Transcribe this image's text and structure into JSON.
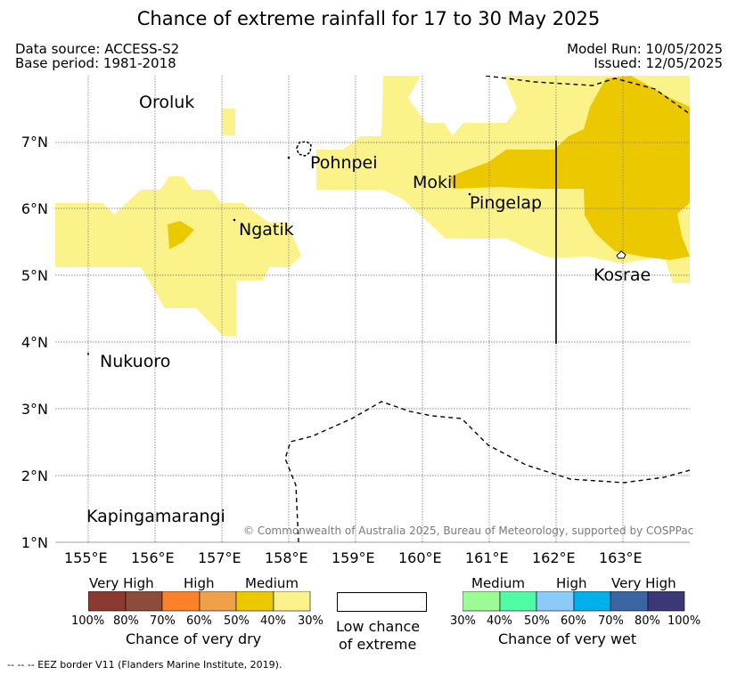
{
  "title": "Chance of extreme rainfall for 17 to 30 May 2025",
  "header": {
    "data_source": "Data source: ACCESS-S2",
    "base_period": "Base period: 1981-2018",
    "model_run": "Model Run: 10/05/2025",
    "issued": "Issued: 12/05/2025"
  },
  "map": {
    "lon_ticks": [
      "155°E",
      "156°E",
      "157°E",
      "158°E",
      "159°E",
      "160°E",
      "161°E",
      "162°E",
      "163°E"
    ],
    "lat_ticks": [
      "1°N",
      "2°N",
      "3°N",
      "4°N",
      "5°N",
      "6°N",
      "7°N"
    ],
    "places": {
      "oroluk": "Oroluk",
      "pohnpei": "Pohnpei",
      "mokil": "Mokil",
      "pingelap": "Pingelap",
      "ngatik": "Ngatik",
      "kosrae": "Kosrae",
      "nukuoro": "Nukuoro",
      "kapingamarangi": "Kapingamarangi"
    },
    "colors": {
      "wet_30_40": "#fbf38a",
      "wet_50_60": "#ecc800",
      "gridline": "#888888"
    },
    "copyright": "© Commonwealth of Australia 2025, Bureau of Meteorology, supported by COSPPac"
  },
  "legend": {
    "dry": {
      "headings": [
        "Very High",
        "High",
        "Medium"
      ],
      "colors": [
        "#8b3a2f",
        "#8b4c3a",
        "#fb8228",
        "#f0a048",
        "#ecc800",
        "#fbf38a"
      ],
      "labels": [
        "100%",
        "80%",
        "70%",
        "60%",
        "50%",
        "40%",
        "30%"
      ],
      "caption": "Chance of very dry"
    },
    "low": {
      "caption_line1": "Low chance",
      "caption_line2": "of extreme",
      "color": "#ffffff"
    },
    "wet": {
      "headings": [
        "Medium",
        "High",
        "Very High"
      ],
      "colors": [
        "#9bfb95",
        "#4ffba4",
        "#8ccaf9",
        "#00b0ea",
        "#3a65a5",
        "#3c3878"
      ],
      "labels": [
        "30%",
        "40%",
        "50%",
        "60%",
        "70%",
        "80%",
        "100%"
      ],
      "caption": "Chance of very wet"
    }
  },
  "footnote": "--  --  -- EEZ border V11 (Flanders Marine Institute, 2019)."
}
